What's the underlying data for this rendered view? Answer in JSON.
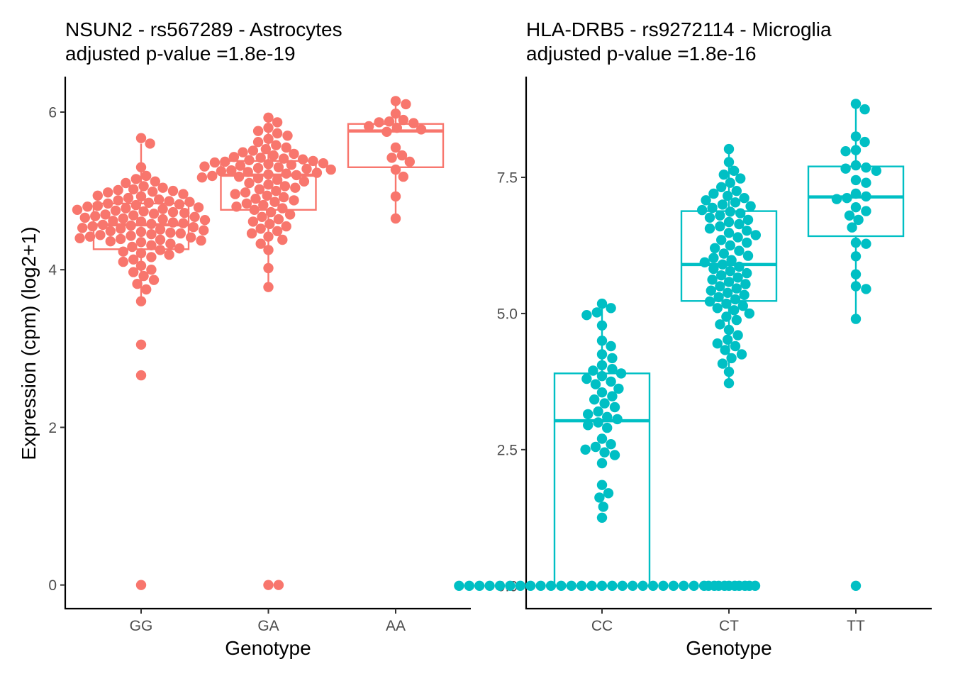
{
  "figure": {
    "ylabel": "Expression (cpm) (log2+1)"
  },
  "chart_data": [
    {
      "type": "box-swarm",
      "title": "NSUN2 - rs567289 - Astrocytes",
      "subtitle": "adjusted p-value =1.8e-19",
      "xlabel": "Genotype",
      "ylabel": "Expression (cpm) (log2+1)",
      "color": "#F8766D",
      "categories": [
        "GG",
        "GA",
        "AA"
      ],
      "ylim": [
        -0.3,
        6.45
      ],
      "yticks": [
        0,
        2,
        4,
        6
      ],
      "ytick_labels": [
        "0",
        "2",
        "4",
        "6"
      ],
      "box": [
        {
          "category": "GG",
          "q1": 4.26,
          "median": 4.57,
          "q3": 4.84,
          "whisker_low": 3.6,
          "whisker_high": 5.6
        },
        {
          "category": "GA",
          "q1": 4.76,
          "median": 5.2,
          "q3": 5.38,
          "whisker_low": 3.78,
          "whisker_high": 5.93
        },
        {
          "category": "AA",
          "q1": 5.3,
          "median": 5.76,
          "q3": 5.85,
          "whisker_low": 4.65,
          "whisker_high": 6.14
        }
      ],
      "points": [
        {
          "category": "GG",
          "values": [
            5.67,
            5.6,
            5.3,
            5.19,
            5.15,
            5.12,
            5.1,
            5.06,
            5.04,
            5.02,
            5.01,
            5.0,
            4.99,
            4.98,
            4.96,
            4.94,
            4.93,
            4.91,
            4.89,
            4.88,
            4.87,
            4.86,
            4.85,
            4.84,
            4.83,
            4.82,
            4.81,
            4.8,
            4.79,
            4.78,
            4.77,
            4.76,
            4.75,
            4.74,
            4.73,
            4.72,
            4.71,
            4.7,
            4.69,
            4.68,
            4.67,
            4.66,
            4.65,
            4.64,
            4.63,
            4.62,
            4.61,
            4.6,
            4.59,
            4.58,
            4.57,
            4.56,
            4.55,
            4.54,
            4.53,
            4.52,
            4.51,
            4.5,
            4.49,
            4.48,
            4.47,
            4.46,
            4.45,
            4.44,
            4.43,
            4.42,
            4.41,
            4.4,
            4.39,
            4.38,
            4.37,
            4.36,
            4.35,
            4.33,
            4.31,
            4.29,
            4.27,
            4.25,
            4.23,
            4.21,
            4.19,
            4.16,
            4.13,
            4.1,
            4.05,
            4.0,
            3.97,
            3.92,
            3.87,
            3.82,
            3.75,
            3.6,
            3.05,
            2.66,
            0.0
          ]
        },
        {
          "category": "GA",
          "values": [
            5.93,
            5.87,
            5.8,
            5.76,
            5.73,
            5.7,
            5.66,
            5.62,
            5.58,
            5.55,
            5.53,
            5.51,
            5.49,
            5.47,
            5.45,
            5.43,
            5.42,
            5.41,
            5.4,
            5.39,
            5.38,
            5.37,
            5.36,
            5.35,
            5.34,
            5.33,
            5.32,
            5.31,
            5.3,
            5.29,
            5.28,
            5.27,
            5.26,
            5.25,
            5.24,
            5.23,
            5.22,
            5.21,
            5.2,
            5.19,
            5.18,
            5.17,
            5.16,
            5.14,
            5.12,
            5.1,
            5.08,
            5.06,
            5.04,
            5.02,
            5.0,
            4.98,
            4.96,
            4.94,
            4.92,
            4.9,
            4.88,
            4.86,
            4.84,
            4.82,
            4.8,
            4.78,
            4.76,
            4.73,
            4.7,
            4.67,
            4.64,
            4.61,
            4.58,
            4.55,
            4.52,
            4.49,
            4.46,
            4.42,
            4.38,
            4.33,
            4.25,
            4.02,
            3.78,
            0.0,
            0.0
          ]
        },
        {
          "category": "AA",
          "values": [
            6.14,
            6.1,
            5.98,
            5.9,
            5.88,
            5.87,
            5.86,
            5.82,
            5.8,
            5.78,
            5.75,
            5.55,
            5.45,
            5.42,
            5.37,
            5.27,
            5.18,
            4.93,
            4.65
          ]
        }
      ]
    },
    {
      "type": "box-swarm",
      "title": "HLA-DRB5 - rs9272114 - Microglia",
      "subtitle": "adjusted p-value =1.8e-16",
      "xlabel": "Genotype",
      "ylabel": "",
      "color": "#00BFC4",
      "categories": [
        "CC",
        "CT",
        "TT"
      ],
      "ylim": [
        -0.42,
        9.35
      ],
      "yticks": [
        0,
        2.5,
        5,
        7.5
      ],
      "ytick_labels": [
        "0.0",
        "2.5",
        "5.0",
        "7.5"
      ],
      "box": [
        {
          "category": "CC",
          "q1": 0.0,
          "median": 3.03,
          "q3": 3.9,
          "whisker_low": 0.0,
          "whisker_high": 5.18
        },
        {
          "category": "CT",
          "q1": 5.23,
          "median": 5.9,
          "q3": 6.88,
          "whisker_low": 3.72,
          "whisker_high": 8.02
        },
        {
          "category": "TT",
          "q1": 6.42,
          "median": 7.14,
          "q3": 7.7,
          "whisker_low": 4.9,
          "whisker_high": 8.85
        }
      ],
      "points": [
        {
          "category": "CC",
          "values": [
            5.18,
            5.1,
            5.02,
            4.97,
            4.78,
            4.5,
            4.4,
            4.25,
            4.18,
            4.05,
            3.98,
            3.95,
            3.9,
            3.85,
            3.8,
            3.75,
            3.7,
            3.62,
            3.55,
            3.48,
            3.42,
            3.35,
            3.28,
            3.2,
            3.15,
            3.1,
            3.06,
            3.0,
            2.95,
            2.9,
            2.7,
            2.6,
            2.55,
            2.5,
            2.45,
            2.4,
            2.25,
            1.85,
            1.7,
            1.62,
            1.45,
            1.25,
            0.0,
            0.0,
            0.0,
            0.0,
            0.0,
            0.0,
            0.0,
            0.0,
            0.0,
            0.0,
            0.0,
            0.0,
            0.0,
            0.0,
            0.0,
            0.0,
            0.0,
            0.0,
            0.0,
            0.0,
            0.0,
            0.0,
            0.0,
            0.0,
            0.0,
            0.0,
            0.0,
            0.0,
            0.0,
            0.0
          ]
        },
        {
          "category": "CT",
          "values": [
            8.02,
            7.78,
            7.62,
            7.55,
            7.48,
            7.4,
            7.32,
            7.25,
            7.2,
            7.16,
            7.12,
            7.08,
            7.04,
            7.0,
            6.97,
            6.94,
            6.9,
            6.87,
            6.84,
            6.8,
            6.76,
            6.72,
            6.68,
            6.64,
            6.6,
            6.56,
            6.52,
            6.48,
            6.44,
            6.4,
            6.35,
            6.3,
            6.25,
            6.2,
            6.15,
            6.1,
            6.06,
            6.02,
            5.98,
            5.94,
            5.9,
            5.86,
            5.82,
            5.78,
            5.74,
            5.7,
            5.66,
            5.62,
            5.58,
            5.54,
            5.5,
            5.46,
            5.42,
            5.38,
            5.34,
            5.3,
            5.26,
            5.22,
            5.18,
            5.14,
            5.1,
            5.06,
            5.0,
            4.94,
            4.88,
            4.8,
            4.7,
            4.6,
            4.52,
            4.45,
            4.4,
            4.33,
            4.25,
            4.18,
            4.08,
            3.93,
            3.72,
            0.0,
            0.0,
            0.0,
            0.0,
            0.0
          ]
        },
        {
          "category": "TT",
          "values": [
            8.85,
            8.75,
            8.25,
            8.15,
            8.0,
            7.98,
            7.72,
            7.68,
            7.66,
            7.62,
            7.45,
            7.4,
            7.2,
            7.15,
            7.12,
            7.1,
            6.95,
            6.88,
            6.8,
            6.72,
            6.58,
            6.3,
            6.28,
            6.05,
            5.72,
            5.5,
            5.45,
            4.9,
            0.0
          ]
        }
      ]
    }
  ]
}
